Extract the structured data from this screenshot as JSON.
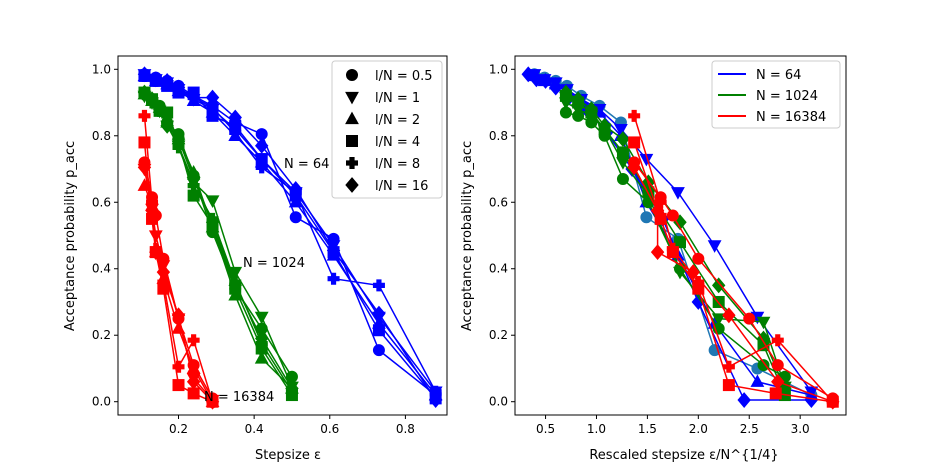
{
  "chart_data": [
    {
      "type": "line",
      "panel": "left",
      "xlabel": "Stepsize ε",
      "ylabel": "Acceptance probability p_acc",
      "xlim": [
        0.04,
        0.91
      ],
      "ylim": [
        -0.04,
        1.04
      ],
      "xticks": [
        0.2,
        0.4,
        0.6,
        0.8
      ],
      "xtick_labels": [
        "0.2",
        "0.4",
        "0.6",
        "0.8"
      ],
      "yticks": [
        0.0,
        0.2,
        0.4,
        0.6,
        0.8,
        1.0
      ],
      "ytick_labels": [
        "0.0",
        "0.2",
        "0.4",
        "0.6",
        "0.8",
        "1.0"
      ],
      "annotations": [
        {
          "text": "N = 64",
          "x": 0.5,
          "y": 0.705
        },
        {
          "text": "N = 1024",
          "x": 0.4,
          "y": 0.405
        },
        {
          "text": "N = 16384",
          "x": 0.29,
          "y": 0.005
        }
      ],
      "legend": {
        "position": "top-right",
        "entries": [
          {
            "label": "l/N = 0.5",
            "marker": "circle"
          },
          {
            "label": "l/N = 1",
            "marker": "triangle-down"
          },
          {
            "label": "l/N = 2",
            "marker": "triangle-up"
          },
          {
            "label": "l/N = 4",
            "marker": "square"
          },
          {
            "label": "l/N = 8",
            "marker": "plus"
          },
          {
            "label": "l/N = 16",
            "marker": "diamond"
          }
        ]
      },
      "series": [
        {
          "name": "N=64, l/N=0.5",
          "group": "N=64",
          "color": "#0000ff",
          "marker": "circle",
          "x": [
            0.11,
            0.14,
            0.17,
            0.2,
            0.24,
            0.29,
            0.35,
            0.42,
            0.51,
            0.61,
            0.73,
            0.88
          ],
          "y": [
            0.985,
            0.975,
            0.965,
            0.95,
            0.92,
            0.89,
            0.84,
            0.805,
            0.555,
            0.49,
            0.155,
            0.02
          ]
        },
        {
          "name": "N=64, l/N=1",
          "group": "N=64",
          "color": "#0000ff",
          "marker": "triangle-down",
          "x": [
            0.11,
            0.14,
            0.17,
            0.2,
            0.24,
            0.29,
            0.35,
            0.42,
            0.51,
            0.61,
            0.73,
            0.88
          ],
          "y": [
            0.985,
            0.97,
            0.96,
            0.94,
            0.91,
            0.88,
            0.82,
            0.73,
            0.63,
            0.47,
            0.255,
            0.03
          ]
        },
        {
          "name": "N=64, l/N=2",
          "group": "N=64",
          "color": "#0000ff",
          "marker": "triangle-up",
          "x": [
            0.11,
            0.14,
            0.17,
            0.2,
            0.24,
            0.29,
            0.35,
            0.42,
            0.51,
            0.61,
            0.73,
            0.88
          ],
          "y": [
            0.98,
            0.965,
            0.955,
            0.935,
            0.905,
            0.87,
            0.8,
            0.72,
            0.6,
            0.44,
            0.235,
            0.02
          ]
        },
        {
          "name": "N=64, l/N=4",
          "group": "N=64",
          "color": "#0000ff",
          "marker": "square",
          "x": [
            0.11,
            0.14,
            0.17,
            0.2,
            0.24,
            0.29,
            0.35,
            0.42,
            0.51,
            0.61,
            0.73,
            0.88
          ],
          "y": [
            0.98,
            0.965,
            0.95,
            0.93,
            0.93,
            0.86,
            0.83,
            0.73,
            0.62,
            0.45,
            0.215,
            0.01
          ]
        },
        {
          "name": "N=64, l/N=8",
          "group": "N=64",
          "color": "#0000ff",
          "marker": "plus",
          "x": [
            0.11,
            0.14,
            0.17,
            0.2,
            0.24,
            0.29,
            0.35,
            0.42,
            0.51,
            0.61,
            0.73,
            0.88
          ],
          "y": [
            0.98,
            0.965,
            0.955,
            0.935,
            0.915,
            0.885,
            0.81,
            0.705,
            0.63,
            0.37,
            0.35,
            0.03
          ]
        },
        {
          "name": "N=64, l/N=16",
          "group": "N=64",
          "color": "#0000ff",
          "marker": "diamond",
          "x": [
            0.11,
            0.14,
            0.17,
            0.2,
            0.24,
            0.29,
            0.35,
            0.42,
            0.51,
            0.61,
            0.73,
            0.88
          ],
          "y": [
            0.985,
            0.97,
            0.965,
            0.945,
            0.915,
            0.915,
            0.855,
            0.77,
            0.64,
            0.455,
            0.265,
            0.005
          ]
        },
        {
          "name": "N=1024, l/N=0.5",
          "group": "N=1024",
          "color": "#008000",
          "marker": "circle",
          "x": [
            0.11,
            0.13,
            0.15,
            0.17,
            0.2,
            0.24,
            0.29,
            0.35,
            0.42,
            0.5
          ],
          "y": [
            0.925,
            0.91,
            0.89,
            0.84,
            0.805,
            0.68,
            0.51,
            0.34,
            0.22,
            0.075
          ]
        },
        {
          "name": "N=1024, l/N=1",
          "group": "N=1024",
          "color": "#008000",
          "marker": "triangle-down",
          "x": [
            0.11,
            0.13,
            0.15,
            0.17,
            0.2,
            0.24,
            0.29,
            0.35,
            0.42,
            0.5
          ],
          "y": [
            0.92,
            0.9,
            0.875,
            0.83,
            0.77,
            0.66,
            0.605,
            0.39,
            0.255,
            0.045
          ]
        },
        {
          "name": "N=1024, l/N=2",
          "group": "N=1024",
          "color": "#008000",
          "marker": "triangle-up",
          "x": [
            0.11,
            0.13,
            0.15,
            0.17,
            0.2,
            0.24,
            0.29,
            0.35,
            0.42,
            0.5
          ],
          "y": [
            0.925,
            0.905,
            0.885,
            0.84,
            0.79,
            0.69,
            0.525,
            0.32,
            0.13,
            0.04
          ]
        },
        {
          "name": "N=1024, l/N=4",
          "group": "N=1024",
          "color": "#008000",
          "marker": "square",
          "x": [
            0.11,
            0.13,
            0.15,
            0.17,
            0.2,
            0.24,
            0.29,
            0.35,
            0.42,
            0.5
          ],
          "y": [
            0.93,
            0.91,
            0.875,
            0.87,
            0.78,
            0.62,
            0.53,
            0.34,
            0.16,
            0.02
          ]
        },
        {
          "name": "N=1024, l/N=8",
          "group": "N=1024",
          "color": "#008000",
          "marker": "plus",
          "x": [
            0.11,
            0.13,
            0.15,
            0.17,
            0.2,
            0.24,
            0.29,
            0.35,
            0.42,
            0.5
          ],
          "y": [
            0.925,
            0.9,
            0.875,
            0.835,
            0.765,
            0.65,
            0.55,
            0.36,
            0.175,
            0.03
          ]
        },
        {
          "name": "N=1024, l/N=16",
          "group": "N=1024",
          "color": "#008000",
          "marker": "diamond",
          "x": [
            0.11,
            0.13,
            0.15,
            0.17,
            0.2,
            0.24,
            0.29,
            0.35,
            0.42,
            0.5
          ],
          "y": [
            0.93,
            0.91,
            0.88,
            0.83,
            0.79,
            0.67,
            0.54,
            0.35,
            0.19,
            0.04
          ]
        },
        {
          "name": "N=16384, l/N=0.5",
          "group": "N=16384",
          "color": "#ff0000",
          "marker": "circle",
          "x": [
            0.11,
            0.13,
            0.14,
            0.16,
            0.2,
            0.24,
            0.29
          ],
          "y": [
            0.72,
            0.615,
            0.56,
            0.43,
            0.25,
            0.11,
            0.01
          ]
        },
        {
          "name": "N=16384, l/N=1",
          "group": "N=16384",
          "color": "#ff0000",
          "marker": "triangle-down",
          "x": [
            0.11,
            0.13,
            0.14,
            0.16,
            0.2,
            0.24,
            0.29
          ],
          "y": [
            0.7,
            0.58,
            0.5,
            0.41,
            0.25,
            0.07,
            0.005
          ]
        },
        {
          "name": "N=16384, l/N=2",
          "group": "N=16384",
          "color": "#ff0000",
          "marker": "triangle-up",
          "x": [
            0.11,
            0.13,
            0.14,
            0.16,
            0.2,
            0.24,
            0.29
          ],
          "y": [
            0.65,
            0.59,
            0.45,
            0.37,
            0.22,
            0.1,
            0.0
          ]
        },
        {
          "name": "N=16384, l/N=4",
          "group": "N=16384",
          "color": "#ff0000",
          "marker": "square",
          "x": [
            0.11,
            0.13,
            0.14,
            0.16,
            0.2,
            0.24,
            0.29
          ],
          "y": [
            0.78,
            0.55,
            0.45,
            0.34,
            0.05,
            0.025,
            0.0
          ]
        },
        {
          "name": "N=16384, l/N=8",
          "group": "N=16384",
          "color": "#ff0000",
          "marker": "plus",
          "x": [
            0.11,
            0.13,
            0.14,
            0.16,
            0.2,
            0.24,
            0.29
          ],
          "y": [
            0.86,
            0.6,
            0.46,
            0.36,
            0.105,
            0.185,
            0.0
          ]
        },
        {
          "name": "N=16384, l/N=16",
          "group": "N=16384",
          "color": "#ff0000",
          "marker": "diamond",
          "x": [
            0.11,
            0.13,
            0.14,
            0.16,
            0.2,
            0.24,
            0.29
          ],
          "y": [
            0.705,
            0.575,
            0.45,
            0.39,
            0.26,
            0.06,
            0.0
          ]
        }
      ]
    },
    {
      "type": "line",
      "panel": "right",
      "xlabel": "Rescaled stepsize ε/N^{1/4}",
      "ylabel": "Acceptance probability p_acc",
      "xlim": [
        0.2,
        3.45
      ],
      "ylim": [
        -0.04,
        1.04
      ],
      "xticks": [
        0.5,
        1.0,
        1.5,
        2.0,
        2.5,
        3.0
      ],
      "xtick_labels": [
        "0.5",
        "1.0",
        "1.5",
        "2.0",
        "2.5",
        "3.0"
      ],
      "yticks": [
        0.0,
        0.2,
        0.4,
        0.6,
        0.8,
        1.0
      ],
      "ytick_labels": [
        "0.0",
        "0.2",
        "0.4",
        "0.6",
        "0.8",
        "1.0"
      ],
      "legend": {
        "position": "top-right",
        "entries": [
          {
            "label": "N = 64",
            "color": "#0000ff"
          },
          {
            "label": "N = 1024",
            "color": "#008000"
          },
          {
            "label": "N = 16384",
            "color": "#ff0000"
          }
        ]
      },
      "series": [
        {
          "name": "N=64, l/N=0.5",
          "group": "N=64",
          "color": "#1f77b4",
          "marker": "circle",
          "x": [
            0.39,
            0.49,
            0.6,
            0.71,
            0.85,
            1.03,
            1.24,
            1.49,
            1.8,
            2.16,
            2.58,
            3.11
          ],
          "y": [
            0.985,
            0.975,
            0.965,
            0.95,
            0.92,
            0.89,
            0.84,
            0.555,
            0.49,
            0.155,
            0.1,
            0.02
          ]
        },
        {
          "name": "N=64, l/N=1",
          "group": "N=64",
          "color": "#0000ff",
          "marker": "triangle-down",
          "x": [
            0.39,
            0.49,
            0.6,
            0.71,
            0.85,
            1.03,
            1.24,
            1.49,
            1.8,
            2.16,
            2.58,
            3.11
          ],
          "y": [
            0.985,
            0.97,
            0.96,
            0.94,
            0.91,
            0.88,
            0.82,
            0.73,
            0.63,
            0.47,
            0.255,
            0.03
          ]
        },
        {
          "name": "N=64, l/N=2",
          "group": "N=64",
          "color": "#0000ff",
          "marker": "triangle-up",
          "x": [
            0.39,
            0.49,
            0.6,
            0.71,
            0.85,
            1.03,
            1.24,
            1.49,
            1.8,
            2.16,
            2.58,
            3.11
          ],
          "y": [
            0.98,
            0.965,
            0.955,
            0.935,
            0.905,
            0.87,
            0.8,
            0.6,
            0.44,
            0.235,
            0.06,
            0.02
          ]
        },
        {
          "name": "N=64, l/N=16",
          "group": "N=64",
          "color": "#0000ff",
          "marker": "diamond",
          "x": [
            0.33,
            0.41,
            0.5,
            0.6,
            0.73,
            0.9,
            1.1,
            1.35,
            1.65,
            2.0,
            2.45,
            3.11
          ],
          "y": [
            0.985,
            0.97,
            0.965,
            0.945,
            0.915,
            0.88,
            0.81,
            0.7,
            0.55,
            0.3,
            0.005,
            0.005
          ]
        },
        {
          "name": "N=1024, l/N=0.5",
          "group": "N=1024",
          "color": "#008000",
          "marker": "circle",
          "x": [
            0.7,
            0.82,
            0.95,
            1.08,
            1.26,
            1.51,
            1.82,
            2.2,
            2.64,
            2.85
          ],
          "y": [
            0.87,
            0.86,
            0.84,
            0.8,
            0.67,
            0.6,
            0.4,
            0.22,
            0.11,
            0.075
          ]
        },
        {
          "name": "N=1024, l/N=1",
          "group": "N=1024",
          "color": "#008000",
          "marker": "triangle-down",
          "x": [
            0.7,
            0.82,
            0.95,
            1.08,
            1.26,
            1.51,
            1.82,
            2.2,
            2.64,
            2.85
          ],
          "y": [
            0.9,
            0.88,
            0.86,
            0.82,
            0.72,
            0.62,
            0.39,
            0.25,
            0.24,
            0.045
          ]
        },
        {
          "name": "N=1024, l/N=4",
          "group": "N=1024",
          "color": "#008000",
          "marker": "square",
          "x": [
            0.7,
            0.82,
            0.95,
            1.08,
            1.26,
            1.51,
            1.82,
            2.2,
            2.64,
            2.85
          ],
          "y": [
            0.92,
            0.9,
            0.87,
            0.82,
            0.75,
            0.63,
            0.48,
            0.3,
            0.17,
            0.02
          ]
        },
        {
          "name": "N=1024, l/N=16",
          "group": "N=1024",
          "color": "#008000",
          "marker": "diamond",
          "x": [
            0.7,
            0.82,
            0.95,
            1.08,
            1.26,
            1.51,
            1.82,
            2.2,
            2.64,
            2.85
          ],
          "y": [
            0.93,
            0.91,
            0.88,
            0.83,
            0.79,
            0.66,
            0.54,
            0.35,
            0.19,
            0.04
          ]
        },
        {
          "name": "N=16384, l/N=0.5",
          "group": "N=16384",
          "color": "#ff0000",
          "marker": "circle",
          "x": [
            1.37,
            1.63,
            1.75,
            2.0,
            2.5,
            2.78,
            3.32
          ],
          "y": [
            0.72,
            0.615,
            0.56,
            0.43,
            0.25,
            0.11,
            0.01
          ]
        },
        {
          "name": "N=16384, l/N=4",
          "group": "N=16384",
          "color": "#ff0000",
          "marker": "square",
          "x": [
            1.37,
            1.63,
            1.75,
            2.0,
            2.3,
            2.76,
            3.32
          ],
          "y": [
            0.78,
            0.55,
            0.45,
            0.34,
            0.05,
            0.025,
            0.0
          ]
        },
        {
          "name": "N=16384, l/N=8",
          "group": "N=16384",
          "color": "#ff0000",
          "marker": "plus",
          "x": [
            1.37,
            1.63,
            1.75,
            2.0,
            2.3,
            2.78,
            3.32
          ],
          "y": [
            0.86,
            0.6,
            0.46,
            0.36,
            0.105,
            0.185,
            0.0
          ]
        },
        {
          "name": "N=16384, l/N=16",
          "group": "N=16384",
          "color": "#ff0000",
          "marker": "diamond",
          "x": [
            1.37,
            1.6,
            1.6,
            1.95,
            2.3,
            2.78,
            3.32
          ],
          "y": [
            0.705,
            0.575,
            0.45,
            0.39,
            0.26,
            0.06,
            0.0
          ]
        }
      ]
    }
  ]
}
